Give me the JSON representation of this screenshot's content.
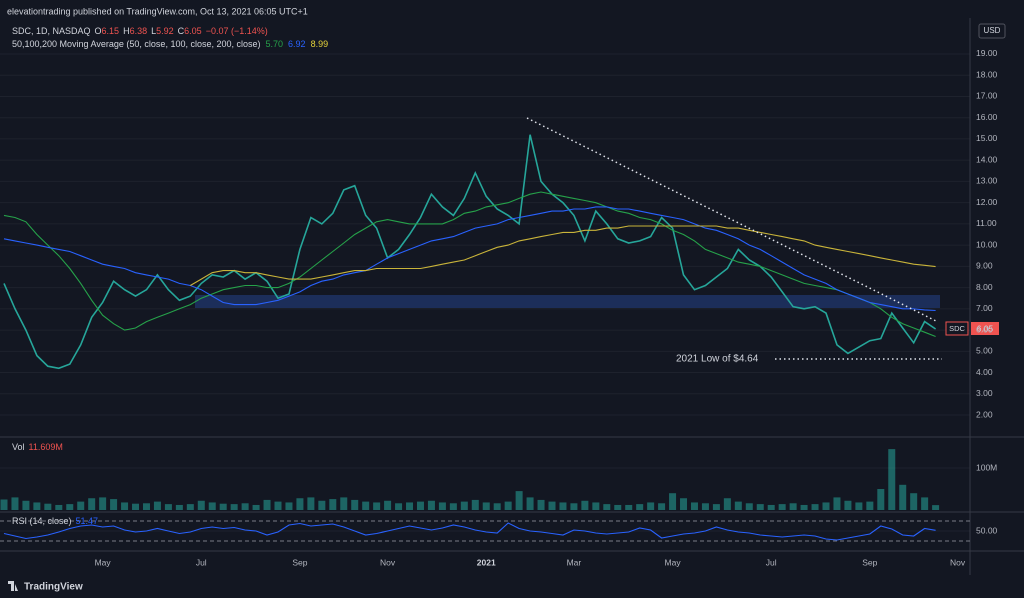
{
  "header": {
    "publisher": "elevationtrading published on TradingView.com, Oct 13, 2021 06:05 UTC+1",
    "symbol": "SDC, 1D, NASDAQ",
    "o": "O",
    "open": "6.15",
    "h": "H",
    "high": "6.38",
    "l": "L",
    "low": "5.92",
    "c": "C",
    "close": "6.05",
    "change": "−0.07 (−1.14%)",
    "ma_title": "50,100,200 Moving Average (50, close, 100, close, 200, close)",
    "ma50": "5.70",
    "ma100": "6.92",
    "ma200": "8.99",
    "currency": "USD",
    "last_price": "6.05",
    "brand": "TradingView"
  },
  "annotation": "2021 Low of $4.64",
  "chart_data": [
    {
      "type": "line",
      "categories": [
        null,
        null,
        null,
        null,
        null,
        null,
        null,
        null,
        null,
        "May",
        null,
        null,
        null,
        null,
        null,
        null,
        null,
        null,
        "Jul",
        null,
        null,
        null,
        null,
        null,
        null,
        null,
        null,
        "Sep",
        null,
        null,
        null,
        null,
        null,
        null,
        null,
        "Nov",
        null,
        null,
        null,
        null,
        null,
        null,
        null,
        null,
        "2021",
        null,
        null,
        null,
        null,
        null,
        null,
        null,
        "Mar",
        null,
        null,
        null,
        null,
        null,
        null,
        null,
        null,
        "May",
        null,
        null,
        null,
        null,
        null,
        null,
        null,
        null,
        "Jul",
        null,
        null,
        null,
        null,
        null,
        null,
        null,
        null,
        "Sep",
        null,
        null,
        null,
        null,
        null,
        null,
        null,
        "Nov"
      ],
      "series": [
        {
          "name": "SDC",
          "color": "#26a69a",
          "values": [
            8.2,
            7.0,
            6.0,
            4.8,
            4.3,
            4.2,
            4.4,
            5.3,
            6.6,
            7.3,
            8.3,
            7.9,
            7.6,
            7.9,
            8.6,
            7.9,
            7.4,
            7.6,
            8.2,
            8.6,
            8.5,
            8.8,
            8.4,
            8.7,
            8.3,
            7.5,
            7.7,
            9.8,
            11.3,
            11.0,
            11.5,
            12.6,
            12.8,
            11.4,
            10.8,
            9.4,
            9.8,
            10.5,
            11.3,
            12.4,
            11.8,
            11.4,
            12.2,
            13.4,
            12.3,
            11.7,
            11.4,
            11.0,
            15.2,
            13.0,
            12.4,
            12.0,
            11.4,
            10.2,
            11.6,
            11.0,
            10.3,
            10.1,
            10.2,
            10.4,
            11.3,
            10.8,
            8.6,
            7.9,
            8.1,
            8.5,
            8.9,
            9.8,
            9.3,
            9.0,
            8.5,
            7.8,
            7.1,
            7.0,
            7.1,
            6.8,
            5.3,
            4.9,
            5.2,
            5.5,
            5.6,
            6.8,
            6.1,
            5.4,
            6.4,
            6.05,
            null,
            null
          ]
        },
        {
          "color": "#26a24a",
          "values": [
            11.4,
            11.3,
            11.1,
            10.5,
            10.0,
            9.5,
            8.9,
            8.2,
            7.4,
            6.7,
            6.3,
            6.0,
            6.1,
            6.4,
            6.6,
            6.8,
            7.0,
            7.2,
            7.5,
            7.7,
            7.9,
            8.0,
            8.1,
            8.1,
            8.0,
            8.0,
            8.2,
            8.5,
            8.9,
            9.3,
            9.7,
            10.1,
            10.5,
            10.8,
            11.1,
            11.2,
            11.1,
            11.0,
            11.0,
            11.0,
            11.0,
            11.2,
            11.5,
            11.6,
            11.8,
            11.9,
            12.0,
            12.2,
            12.4,
            12.5,
            12.4,
            12.3,
            12.2,
            12.1,
            12.0,
            11.8,
            11.6,
            11.5,
            11.3,
            11.2,
            11.0,
            10.7,
            10.5,
            10.2,
            9.8,
            9.6,
            9.4,
            9.2,
            9.1,
            9.0,
            8.8,
            8.6,
            8.4,
            8.2,
            8.1,
            8.0,
            7.9,
            7.7,
            7.5,
            7.3,
            7.0,
            6.6,
            6.3,
            6.1,
            5.9,
            5.7,
            null,
            null
          ]
        },
        {
          "color": "#2962ff",
          "values": [
            10.3,
            10.2,
            10.1,
            10.0,
            9.9,
            9.8,
            9.7,
            9.5,
            9.3,
            9.1,
            9.0,
            8.9,
            8.7,
            8.6,
            8.5,
            8.4,
            8.2,
            8.1,
            7.9,
            7.6,
            7.3,
            7.2,
            7.2,
            7.2,
            7.3,
            7.4,
            7.6,
            7.8,
            8.1,
            8.3,
            8.4,
            8.6,
            8.7,
            8.8,
            9.1,
            9.4,
            9.6,
            9.8,
            10.0,
            10.2,
            10.3,
            10.4,
            10.6,
            10.8,
            10.9,
            11.0,
            11.2,
            11.3,
            11.4,
            11.5,
            11.6,
            11.6,
            11.7,
            11.7,
            11.8,
            11.8,
            11.7,
            11.7,
            11.6,
            11.5,
            11.4,
            11.3,
            11.2,
            11.0,
            10.8,
            10.7,
            10.5,
            10.3,
            10.0,
            9.8,
            9.5,
            9.2,
            8.9,
            8.6,
            8.4,
            8.2,
            7.9,
            7.7,
            7.5,
            7.3,
            7.2,
            7.1,
            7.0,
            7.0,
            6.95,
            6.92,
            null,
            null
          ]
        },
        {
          "color": "#c9b43a",
          "values": [
            null,
            null,
            null,
            null,
            null,
            null,
            null,
            null,
            null,
            null,
            null,
            null,
            null,
            null,
            null,
            null,
            null,
            8.1,
            8.4,
            8.7,
            8.8,
            8.8,
            8.7,
            8.7,
            8.6,
            8.5,
            8.4,
            8.4,
            8.4,
            8.5,
            8.6,
            8.7,
            8.8,
            8.8,
            8.9,
            8.9,
            8.9,
            8.9,
            8.9,
            9.0,
            9.1,
            9.2,
            9.3,
            9.5,
            9.7,
            9.9,
            10.0,
            10.2,
            10.3,
            10.4,
            10.5,
            10.6,
            10.6,
            10.7,
            10.7,
            10.8,
            10.8,
            10.9,
            10.9,
            10.9,
            10.9,
            10.9,
            10.9,
            10.9,
            10.9,
            10.9,
            10.8,
            10.8,
            10.7,
            10.6,
            10.5,
            10.4,
            10.3,
            10.2,
            10.0,
            9.9,
            9.8,
            9.7,
            9.6,
            9.5,
            9.4,
            9.3,
            9.2,
            9.1,
            9.05,
            8.99,
            null,
            null
          ]
        }
      ],
      "ylim": [
        1.06,
        20.6
      ],
      "yticks": [
        {
          "value": 2,
          "label": "2.00"
        },
        {
          "value": 3,
          "label": "3.00"
        },
        {
          "value": 4,
          "label": "4.00"
        },
        {
          "value": 5,
          "label": "5.00"
        },
        {
          "value": 6,
          "label": "6.00"
        },
        {
          "value": 7,
          "label": "7.00"
        },
        {
          "value": 8,
          "label": "8.00"
        },
        {
          "value": 9,
          "label": "9.00"
        },
        {
          "value": 10,
          "label": "10.00"
        },
        {
          "value": 11,
          "label": "11.00"
        },
        {
          "value": 12,
          "label": "12.00"
        },
        {
          "value": 13,
          "label": "13.00"
        },
        {
          "value": 14,
          "label": "14.00"
        },
        {
          "value": 15,
          "label": "15.00"
        },
        {
          "value": 16,
          "label": "16.00"
        },
        {
          "value": 17,
          "label": "17.00"
        },
        {
          "value": 18,
          "label": "18.00"
        },
        {
          "value": 19,
          "label": "19.00"
        }
      ]
    },
    {
      "type": "bar",
      "title": "Vol",
      "last_label": "11.609M",
      "color": "#26a69a",
      "values": [
        25000000,
        30000000,
        22000000,
        18000000,
        15000000,
        12000000,
        14000000,
        20000000,
        28000000,
        30000000,
        26000000,
        18000000,
        15000000,
        16000000,
        20000000,
        14000000,
        12000000,
        14000000,
        22000000,
        18000000,
        15000000,
        14000000,
        16000000,
        12000000,
        24000000,
        20000000,
        18000000,
        28000000,
        30000000,
        22000000,
        26000000,
        30000000,
        24000000,
        20000000,
        18000000,
        22000000,
        16000000,
        18000000,
        20000000,
        22000000,
        18000000,
        16000000,
        20000000,
        24000000,
        18000000,
        16000000,
        20000000,
        45000000,
        30000000,
        24000000,
        20000000,
        18000000,
        16000000,
        22000000,
        18000000,
        14000000,
        12000000,
        12000000,
        14000000,
        18000000,
        16000000,
        40000000,
        28000000,
        18000000,
        16000000,
        14000000,
        28000000,
        20000000,
        16000000,
        14000000,
        12000000,
        14000000,
        16000000,
        12000000,
        14000000,
        18000000,
        30000000,
        22000000,
        18000000,
        20000000,
        50000000,
        145000000,
        60000000,
        40000000,
        30000000,
        11609000,
        null,
        null
      ],
      "ylim": [
        0,
        166700000
      ],
      "yticks": [
        {
          "value": 100000000,
          "label": "100M"
        }
      ]
    },
    {
      "type": "line",
      "title": "RSI (14, close)",
      "last_label": "51.47",
      "color": "#2962ff",
      "values": [
        45,
        40,
        35,
        38,
        42,
        48,
        55,
        60,
        62,
        58,
        60,
        52,
        48,
        50,
        55,
        50,
        45,
        48,
        55,
        58,
        55,
        57,
        52,
        50,
        42,
        48,
        62,
        65,
        60,
        62,
        64,
        58,
        50,
        42,
        45,
        50,
        55,
        60,
        56,
        52,
        56,
        62,
        58,
        52,
        48,
        46,
        66,
        55,
        50,
        48,
        45,
        42,
        52,
        50,
        46,
        44,
        46,
        48,
        56,
        52,
        36,
        40,
        44,
        46,
        50,
        58,
        52,
        48,
        46,
        42,
        40,
        38,
        40,
        42,
        40,
        34,
        32,
        36,
        40,
        44,
        60,
        54,
        42,
        40,
        55,
        51.47,
        null,
        null
      ],
      "ylim": [
        16,
        82
      ],
      "yticks": [
        {
          "value": 50,
          "label": "50.00"
        }
      ],
      "ref_lines": [
        30,
        70
      ]
    }
  ]
}
